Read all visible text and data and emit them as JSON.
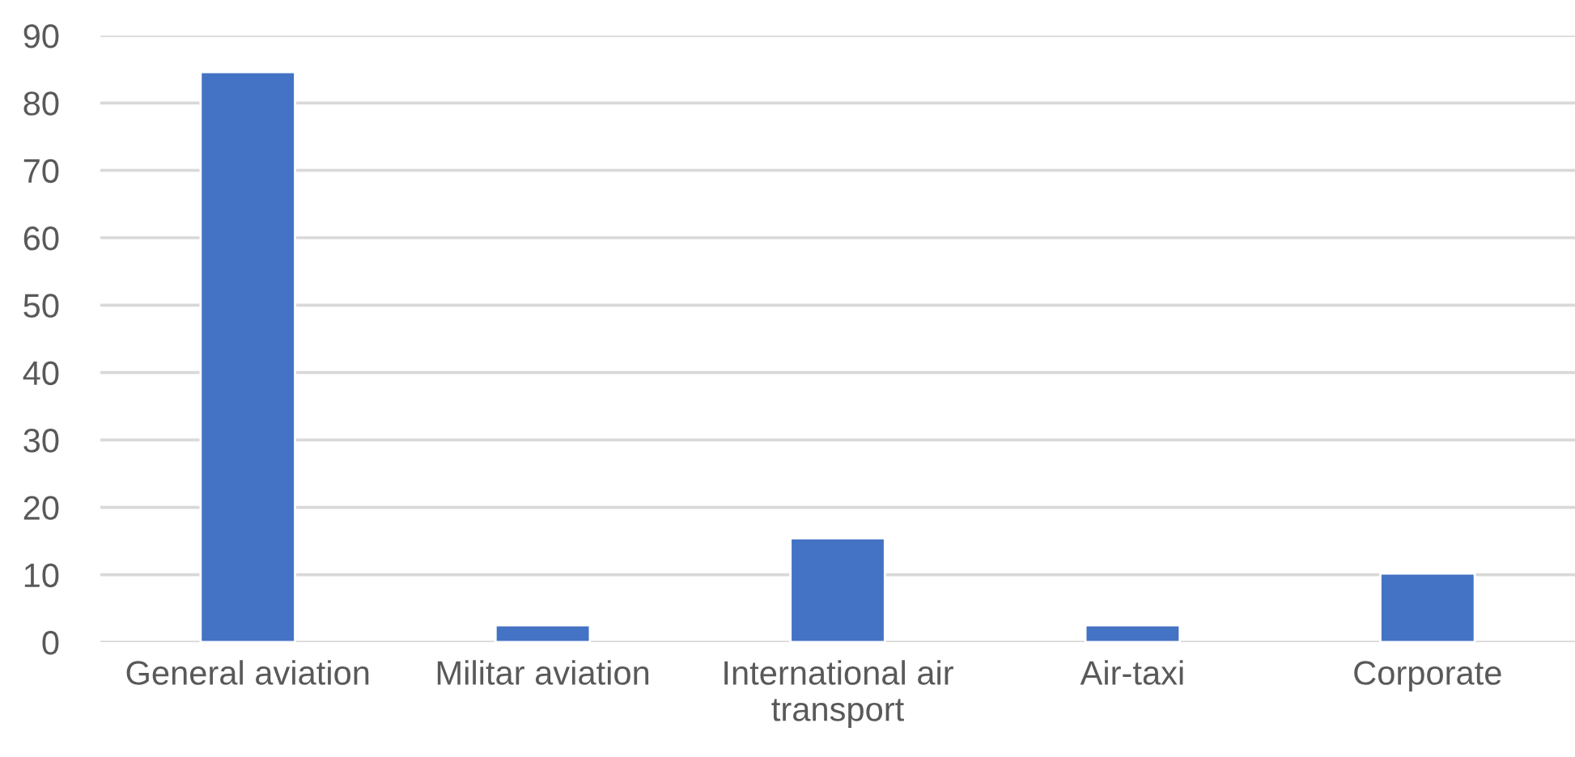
{
  "chart_data": {
    "type": "bar",
    "categories": [
      "General aviation",
      "Militar aviation",
      "International air transport",
      "Air-taxi",
      "Corporate"
    ],
    "values": [
      84.6,
      2.5,
      15.4,
      2.5,
      10.2
    ],
    "color": "#4472c4",
    "ylim": [
      0,
      90
    ],
    "yticks": [
      0,
      10,
      20,
      30,
      40,
      50,
      60,
      70,
      80,
      90
    ],
    "grid": "y",
    "legend": false
  }
}
